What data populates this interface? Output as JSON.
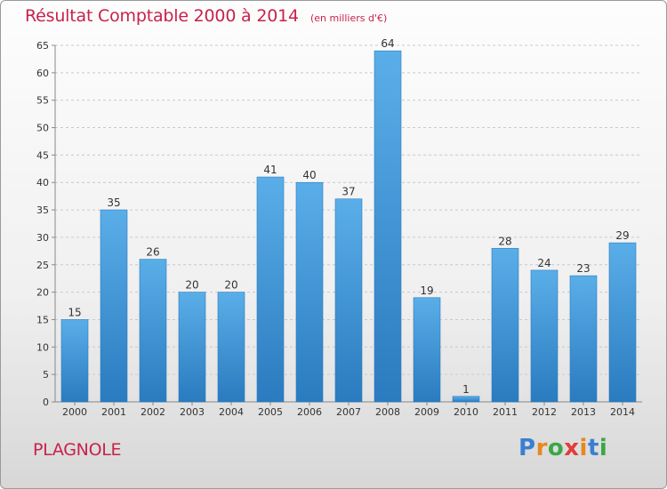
{
  "commune": "PLAGNOLE",
  "logo": {
    "letters": [
      "P",
      "r",
      "o",
      "x",
      "i",
      "t",
      "i"
    ],
    "colors": [
      "#3a7fd0",
      "#e8871e",
      "#3aa845",
      "#e23b3b",
      "#e8871e",
      "#3a7fd0",
      "#3aa845"
    ]
  },
  "colors": {
    "title": "#c8224a",
    "bar_light": "#5aaee8",
    "bar_dark": "#2a7bbf"
  },
  "chart_data": {
    "type": "bar",
    "title": "Résultat Comptable 2000 à 2014",
    "subtitle": "(en milliers d'€)",
    "xlabel": "",
    "ylabel": "",
    "categories": [
      "2000",
      "2001",
      "2002",
      "2003",
      "2004",
      "2005",
      "2006",
      "2007",
      "2008",
      "2009",
      "2010",
      "2011",
      "2012",
      "2013",
      "2014"
    ],
    "values": [
      15,
      35,
      26,
      20,
      20,
      41,
      40,
      37,
      64,
      19,
      1,
      28,
      24,
      23,
      29
    ],
    "ylim": [
      0,
      65
    ],
    "yticks": [
      0,
      5,
      10,
      15,
      20,
      25,
      30,
      35,
      40,
      45,
      50,
      55,
      60,
      65
    ],
    "grid": "horizontal dashed",
    "legend": "none"
  }
}
